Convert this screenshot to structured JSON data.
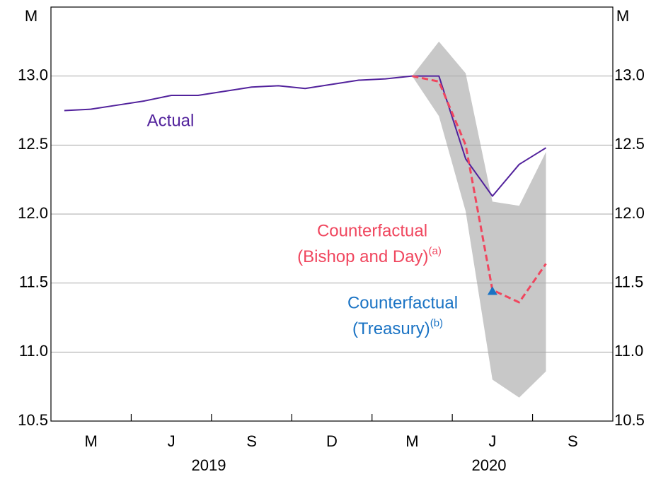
{
  "chart_data": {
    "type": "line",
    "y_unit_left": "M",
    "y_unit_right": "M",
    "categories": [
      null,
      "M",
      null,
      null,
      "J",
      null,
      null,
      "S",
      null,
      null,
      "D",
      null,
      null,
      "M",
      null,
      null,
      "J",
      null,
      null,
      "S",
      null
    ],
    "years": [
      "2019",
      "2020"
    ],
    "ylim": [
      10.5,
      13.5
    ],
    "yticks": [
      10.5,
      {
        "value": 11,
        "label": "11.0"
      },
      11.5,
      {
        "value": 12,
        "label": "12.0"
      },
      12.5,
      {
        "value": 13,
        "label": "13.0"
      }
    ],
    "grid": true,
    "band": {
      "color": "#c8c8c8",
      "upper": [
        null,
        null,
        null,
        null,
        null,
        null,
        null,
        null,
        null,
        null,
        null,
        null,
        null,
        13.0,
        13.25,
        13.02,
        12.09,
        12.06,
        12.45,
        null,
        null
      ],
      "lower": [
        null,
        null,
        null,
        null,
        null,
        null,
        null,
        null,
        null,
        null,
        null,
        null,
        null,
        13.0,
        12.71,
        12.02,
        10.8,
        10.67,
        10.86,
        null,
        null
      ]
    },
    "series": [
      {
        "name": "Actual",
        "color": "#52229c",
        "style": "solid",
        "values": [
          12.75,
          12.76,
          12.79,
          12.82,
          12.86,
          12.86,
          12.89,
          12.92,
          12.93,
          12.91,
          12.94,
          12.97,
          12.98,
          13.0,
          13.0,
          12.4,
          12.13,
          12.36,
          12.48,
          null,
          null
        ]
      },
      {
        "name": "Counterfactual",
        "name_line2": "(Bishop and Day)",
        "note": "(a)",
        "color": "#f0465e",
        "style": "dashed",
        "values": [
          null,
          null,
          null,
          null,
          null,
          null,
          null,
          null,
          null,
          null,
          null,
          null,
          null,
          13.0,
          12.96,
          12.5,
          11.45,
          11.36,
          11.64,
          null,
          null
        ]
      },
      {
        "name": "Counterfactual",
        "name_line2": "(Treasury)",
        "note": "(b)",
        "color": "#1a73c4",
        "style": "marker",
        "values": [
          null,
          null,
          null,
          null,
          null,
          null,
          null,
          null,
          null,
          null,
          null,
          null,
          null,
          null,
          null,
          null,
          11.44,
          null,
          null,
          null,
          null
        ]
      }
    ]
  }
}
